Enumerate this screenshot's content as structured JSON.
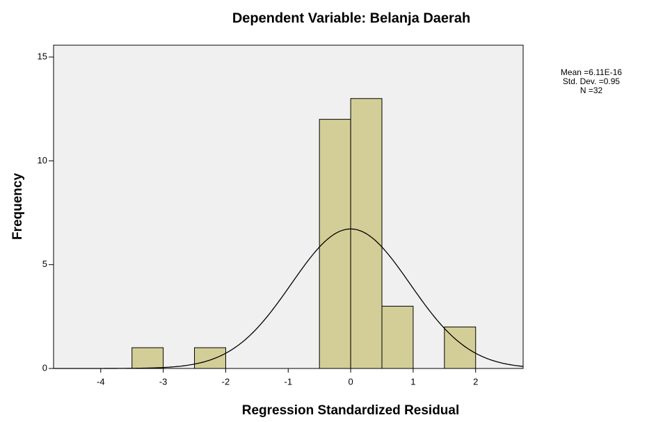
{
  "chart_data": {
    "type": "histogram",
    "title": "Dependent Variable: Belanja Daerah",
    "x_label": "Regression Standardized Residual",
    "y_label": "Frequency",
    "bins": [
      -3.5,
      -3,
      -2.5,
      -2,
      -1.5,
      -1,
      -0.5,
      0,
      0.5,
      1,
      1.5,
      2
    ],
    "values": [
      1,
      0,
      1,
      0,
      0,
      0,
      12,
      13,
      3,
      0,
      2
    ],
    "color": "#d3ce97",
    "edge_color": "#000000",
    "background": "#f0f0f0",
    "xlim": [
      -4.755,
      2.76
    ],
    "ylim": [
      0,
      15.57
    ],
    "xticks": [
      -4,
      -3,
      -2,
      -1,
      0,
      1,
      2
    ],
    "yticks": [
      0,
      5,
      10,
      15
    ],
    "annotations": [
      "Mean =6.11E-16",
      "Std. Dev. =0.95",
      "N =32"
    ],
    "normal_curve": {
      "mean": 6.11e-16,
      "sd": 0.95,
      "n": 32
    }
  }
}
